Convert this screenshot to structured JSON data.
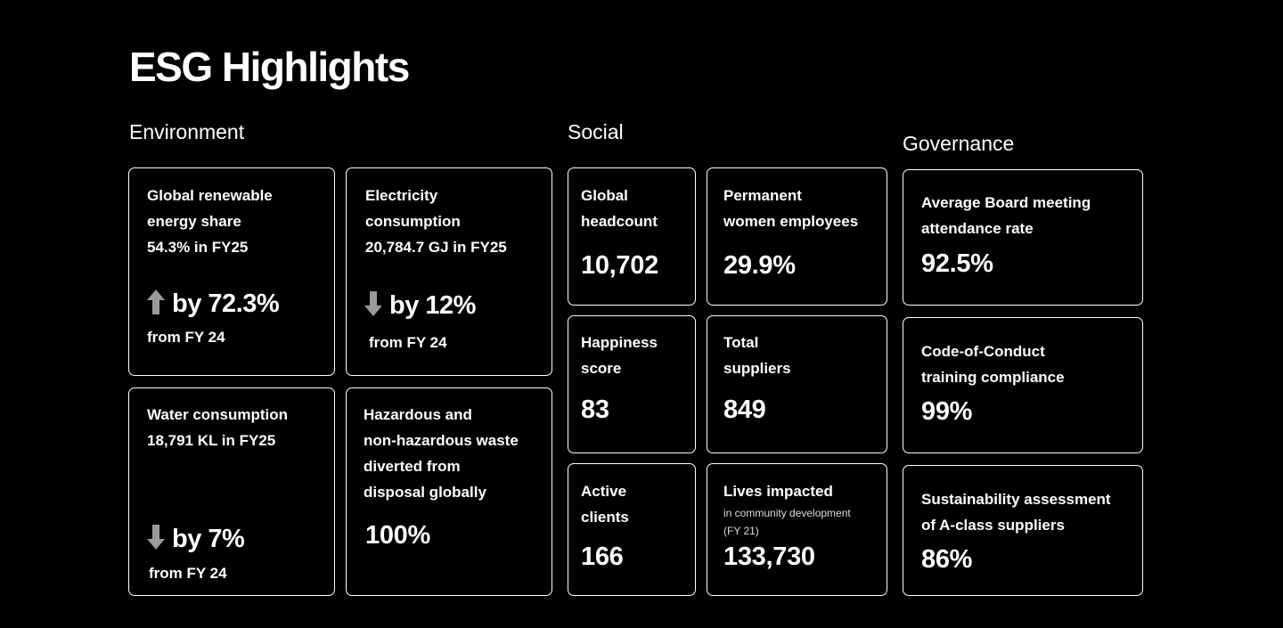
{
  "page": {
    "title": "ESG Highlights"
  },
  "environment": {
    "title": "Environment",
    "renewable": {
      "label_line1": "Global renewable",
      "label_line2": "energy share",
      "label_line3": "54.3% in FY25",
      "direction": "up",
      "delta": "by 72.3%",
      "from": "from FY 24"
    },
    "electricity": {
      "label_line1": "Electricity",
      "label_line2": "consumption",
      "label_line3": "20,784.7 GJ in FY25",
      "direction": "down",
      "delta": "by 12%",
      "from": "from FY 24"
    },
    "water": {
      "label_line1": "Water consumption",
      "label_line2": "18,791 KL in FY25",
      "direction": "down",
      "delta": "by 7%",
      "from": "from FY 24"
    },
    "waste": {
      "label_line1": "Hazardous and",
      "label_line2": "non-hazardous waste",
      "label_line3": "diverted from",
      "label_line4": "disposal globally",
      "value": "100%"
    }
  },
  "social": {
    "title": "Social",
    "headcount": {
      "label_line1": "Global",
      "label_line2": "headcount",
      "value": "10,702"
    },
    "women": {
      "label_line1": "Permanent",
      "label_line2": "women employees",
      "value": "29.9%"
    },
    "happiness": {
      "label_line1": "Happiness",
      "label_line2": "score",
      "value": "83"
    },
    "suppliers": {
      "label_line1": "Total",
      "label_line2": "suppliers",
      "value": "849"
    },
    "clients": {
      "label_line1": "Active",
      "label_line2": "clients",
      "value": "166"
    },
    "lives": {
      "label_line1": "Lives impacted",
      "note_line1": "in community development",
      "note_line2": "(FY 21)",
      "value": "133,730"
    }
  },
  "governance": {
    "title": "Governance",
    "board": {
      "label_line1": "Average Board meeting",
      "label_line2": "attendance rate",
      "value": "92.5%"
    },
    "conduct": {
      "label_line1": "Code-of-Conduct",
      "label_line2": "training compliance",
      "value": "99%"
    },
    "assessment": {
      "label_line1": "Sustainability assessment",
      "label_line2": "of A-class suppliers",
      "value": "86%"
    }
  },
  "icons": {
    "up": "arrow-up-icon",
    "down": "arrow-down-icon",
    "arrow_color": "#9a9a9a"
  }
}
